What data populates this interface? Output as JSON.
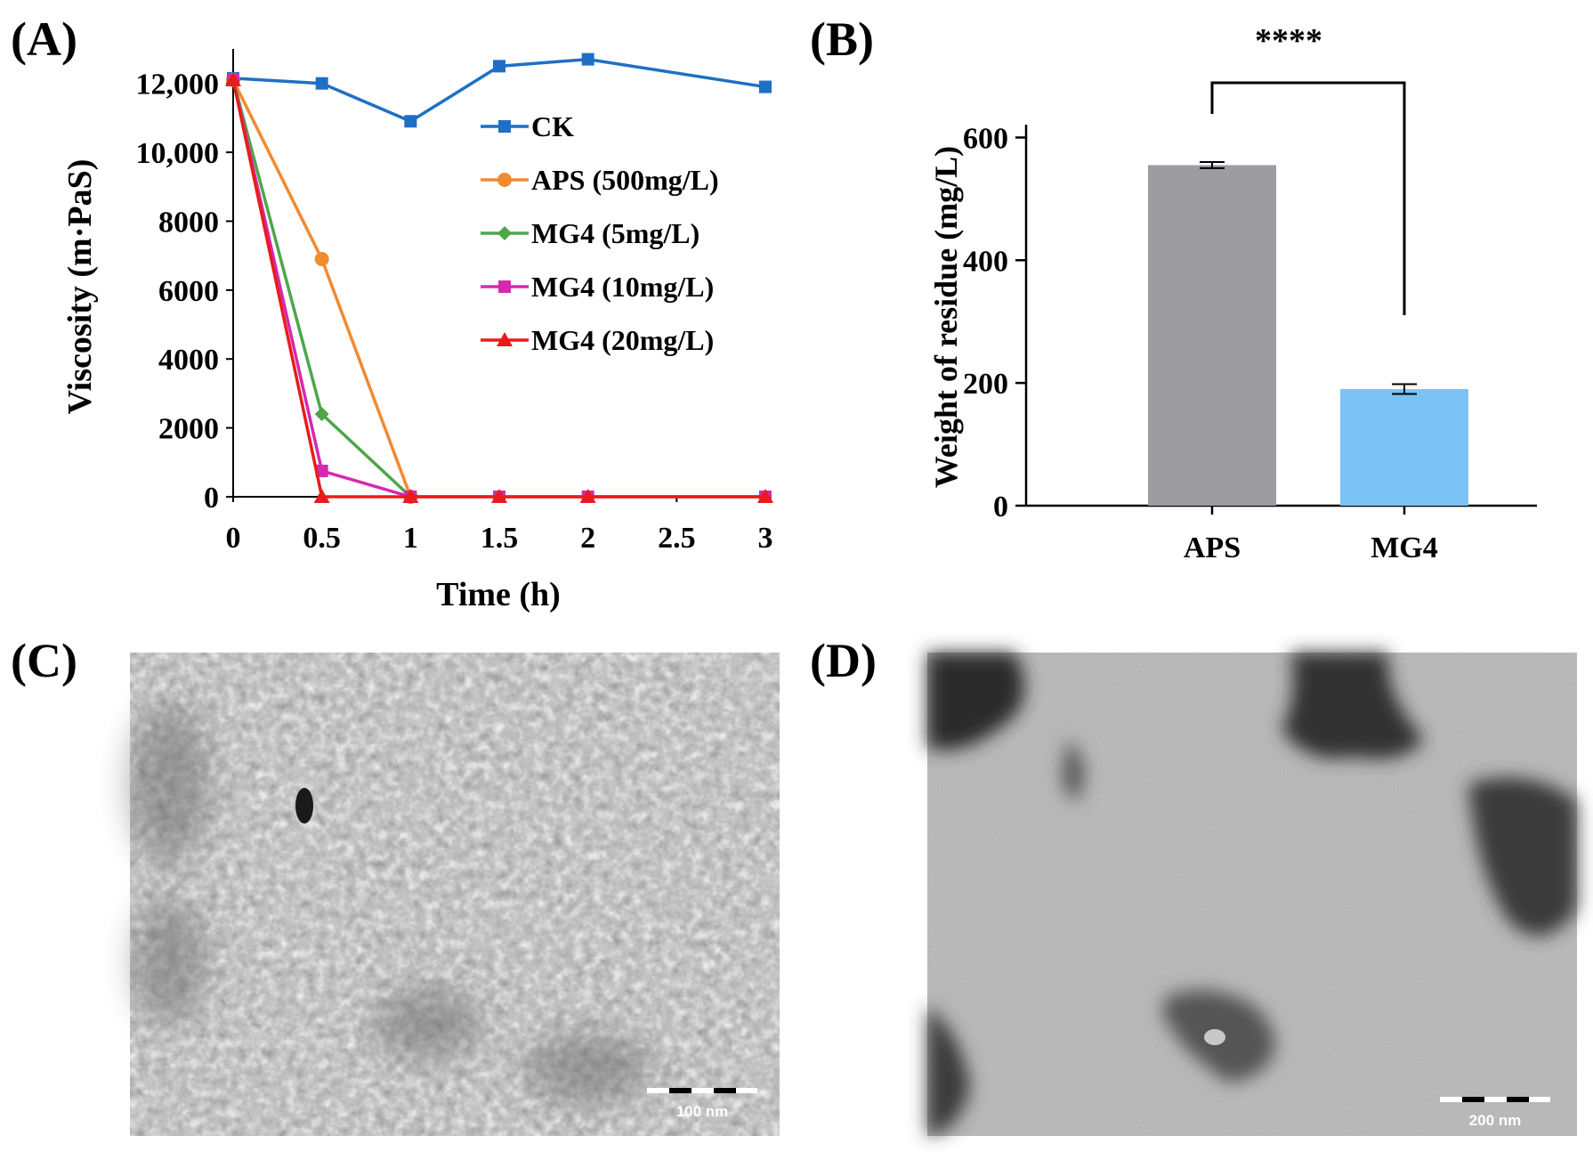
{
  "panels": {
    "a_label": "(A)",
    "b_label": "(B)",
    "c_label": "(C)",
    "d_label": "(D)"
  },
  "chart_data": [
    {
      "panel": "A",
      "type": "line",
      "xlabel": "Time (h)",
      "ylabel": "Viscosity (m·PaS)",
      "xlim": [
        0,
        3
      ],
      "ylim": [
        0,
        13000
      ],
      "x_ticks": [
        "0",
        "0.5",
        "1",
        "1.5",
        "2",
        "2.5",
        "3"
      ],
      "y_ticks": [
        "0",
        "2000",
        "4000",
        "6000",
        "8000",
        "10,000",
        "12,000"
      ],
      "legend_position": "right",
      "series": [
        {
          "name": "CK",
          "color": "#1f6fc5",
          "marker": "square",
          "x": [
            0,
            0.5,
            1,
            1.5,
            2,
            3
          ],
          "y": [
            12150,
            12000,
            10900,
            12500,
            12700,
            11900
          ]
        },
        {
          "name": "APS (500mg/L)",
          "color": "#f28a30",
          "marker": "circle",
          "x": [
            0,
            0.5,
            1
          ],
          "y": [
            12100,
            6900,
            0
          ]
        },
        {
          "name": "MG4 (5mg/L)",
          "color": "#4ea64a",
          "marker": "diamond",
          "x": [
            0,
            0.5,
            1
          ],
          "y": [
            12100,
            2400,
            0
          ]
        },
        {
          "name": "MG4 (10mg/L)",
          "color": "#d42ab0",
          "marker": "square",
          "x": [
            0,
            0.5,
            1,
            1.5,
            2,
            3
          ],
          "y": [
            12100,
            750,
            0,
            0,
            0,
            0
          ]
        },
        {
          "name": "MG4 (20mg/L)",
          "color": "#e81c1c",
          "marker": "triangle",
          "x": [
            0,
            0.5,
            1,
            1.5,
            2,
            3
          ],
          "y": [
            12100,
            0,
            0,
            0,
            0,
            0
          ]
        }
      ]
    },
    {
      "panel": "B",
      "type": "bar",
      "categories": [
        "APS",
        "MG4"
      ],
      "values": [
        555,
        190
      ],
      "errors": [
        5,
        8
      ],
      "colors": [
        "#9d9ca1",
        "#7cc3f5"
      ],
      "ylabel": "Weight of  residue (mg/L)",
      "ylim": [
        0,
        650
      ],
      "y_ticks": [
        "0",
        "200",
        "400",
        "600"
      ],
      "significance": "****"
    }
  ],
  "images": {
    "c_scale_label": "100 nm",
    "d_scale_label": "200 nm"
  }
}
